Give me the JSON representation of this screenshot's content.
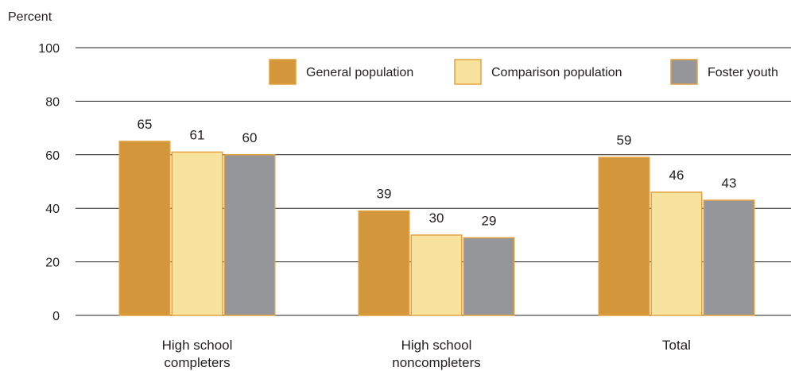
{
  "chart_data": {
    "type": "bar",
    "title": "",
    "ylabel": "Percent",
    "xlabel": "",
    "ylim": [
      0,
      100
    ],
    "yticks": [
      0,
      20,
      40,
      60,
      80,
      100
    ],
    "grid": true,
    "legend_position": "top-right",
    "categories": [
      [
        "High school",
        "completers"
      ],
      [
        "High school",
        "noncompleters"
      ],
      [
        "Total"
      ]
    ],
    "series": [
      {
        "name": "General population",
        "values": [
          65,
          39,
          59
        ],
        "color": "#d4963a"
      },
      {
        "name": "Comparison population",
        "values": [
          61,
          30,
          46
        ],
        "color": "#f7e29e"
      },
      {
        "name": "Foster youth",
        "values": [
          60,
          29,
          43
        ],
        "color": "#949699"
      }
    ],
    "bar_stroke_color": "#e3a23f",
    "grid_color": "#231f20"
  }
}
